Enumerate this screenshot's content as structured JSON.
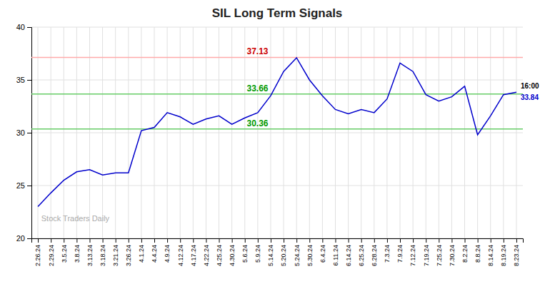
{
  "chart_data": {
    "type": "line",
    "title": "SIL Long Term Signals",
    "color": "#0000cc",
    "grid": true,
    "ylim": [
      20,
      40
    ],
    "yticks": [
      20,
      25,
      30,
      35,
      40
    ],
    "categories": [
      "2.26.24",
      "2.29.24",
      "3.5.24",
      "3.8.24",
      "3.13.24",
      "3.18.24",
      "3.21.24",
      "3.26.24",
      "4.1.24",
      "4.4.24",
      "4.9.24",
      "4.12.24",
      "4.17.24",
      "4.22.24",
      "4.25.24",
      "4.30.24",
      "5.6.24",
      "5.9.24",
      "5.14.24",
      "5.20.24",
      "5.24.24",
      "5.30.24",
      "6.4.24",
      "6.11.24",
      "6.14.24",
      "6.25.24",
      "6.28.24",
      "7.3.24",
      "7.9.24",
      "7.12.24",
      "7.19.24",
      "7.25.24",
      "7.30.24",
      "8.2.24",
      "8.8.24",
      "8.14.24",
      "8.19.24",
      "8.23.24"
    ],
    "values": [
      23.0,
      24.3,
      25.5,
      26.3,
      26.5,
      26.0,
      26.2,
      26.2,
      30.2,
      30.5,
      31.9,
      31.5,
      30.8,
      31.3,
      31.6,
      30.8,
      31.4,
      31.9,
      33.5,
      35.8,
      37.1,
      35.0,
      33.5,
      32.2,
      31.8,
      32.2,
      31.9,
      33.2,
      36.6,
      35.8,
      33.6,
      33.0,
      33.4,
      34.4,
      29.8,
      31.6,
      33.6,
      33.84
    ],
    "reference_lines": [
      {
        "value": 37.13,
        "label": "37.13",
        "color": "#ffaaaa",
        "label_color": "#cc0000"
      },
      {
        "value": 33.66,
        "label": "33.66",
        "color": "#66cc66",
        "label_color": "#009900"
      },
      {
        "value": 30.36,
        "label": "30.36",
        "color": "#66cc66",
        "label_color": "#009900"
      }
    ],
    "end_labels": [
      {
        "text": "16:00",
        "color": "#000000"
      },
      {
        "text": "33.84",
        "color": "#0000cc"
      }
    ],
    "watermark": {
      "text": "Stock Traders Daily",
      "color": "#aaaaaa"
    }
  }
}
